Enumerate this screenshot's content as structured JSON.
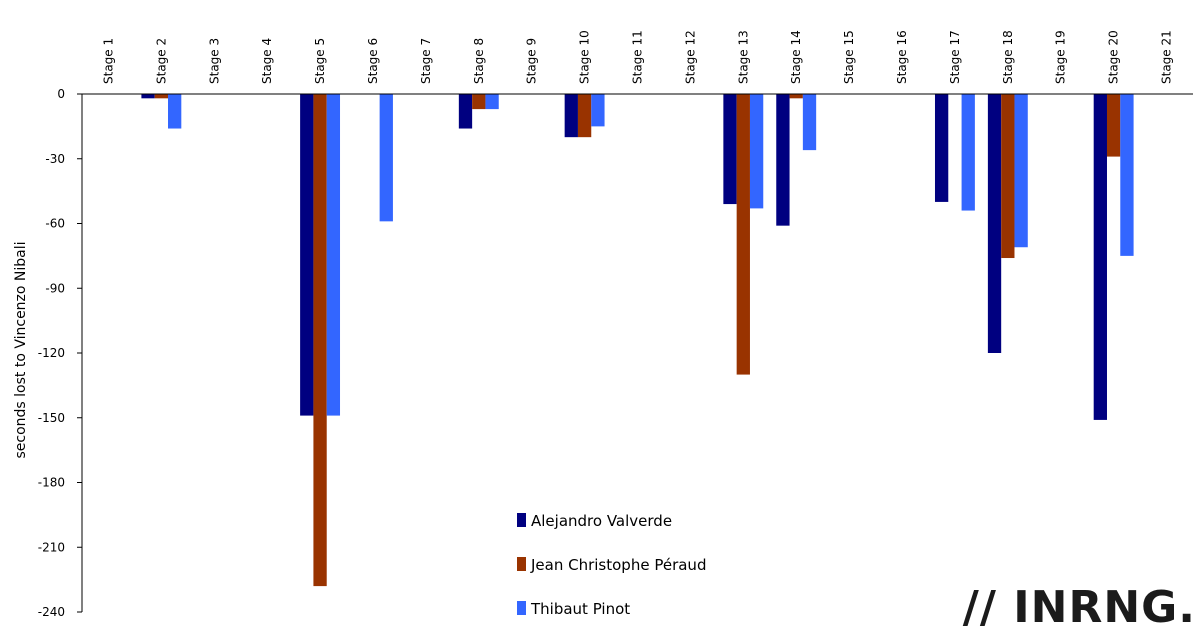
{
  "chart_data": {
    "type": "bar",
    "title": "",
    "ylabel": "seconds lost to Vincenzo Nibali",
    "xlabel": "",
    "ylim": [
      -240,
      0
    ],
    "yticks": [
      0,
      -30,
      -60,
      -90,
      -120,
      -150,
      -180,
      -210,
      -240
    ],
    "x_axis_position": "top",
    "grid": false,
    "legend_position": "bottom-center",
    "categories": [
      "Stage 1",
      "Stage 2",
      "Stage 3",
      "Stage 4",
      "Stage 5",
      "Stage 6",
      "Stage 7",
      "Stage 8",
      "Stage 9",
      "Stage 10",
      "Stage 11",
      "Stage 12",
      "Stage 13",
      "Stage 14",
      "Stage 15",
      "Stage 16",
      "Stage 17",
      "Stage 18",
      "Stage 19",
      "Stage 20",
      "Stage 21"
    ],
    "series": [
      {
        "name": "Alejandro Valverde",
        "color": "#000080",
        "values": [
          0,
          -2,
          0,
          0,
          -149,
          0,
          0,
          -16,
          0,
          -20,
          0,
          0,
          -51,
          -61,
          0,
          0,
          -50,
          -120,
          0,
          -151,
          0
        ]
      },
      {
        "name": "Jean Christophe Péraud",
        "color": "#993300",
        "values": [
          0,
          -2,
          0,
          0,
          -228,
          0,
          0,
          -7,
          0,
          -20,
          0,
          0,
          -130,
          -2,
          0,
          0,
          0,
          -76,
          0,
          -29,
          0
        ]
      },
      {
        "name": "Thibaut Pinot",
        "color": "#3366ff",
        "values": [
          0,
          -16,
          0,
          0,
          -149,
          -59,
          0,
          -7,
          0,
          -15,
          0,
          0,
          -53,
          -26,
          0,
          0,
          -54,
          -71,
          0,
          -75,
          0
        ]
      }
    ]
  },
  "watermark": {
    "text": "// INRNG."
  }
}
